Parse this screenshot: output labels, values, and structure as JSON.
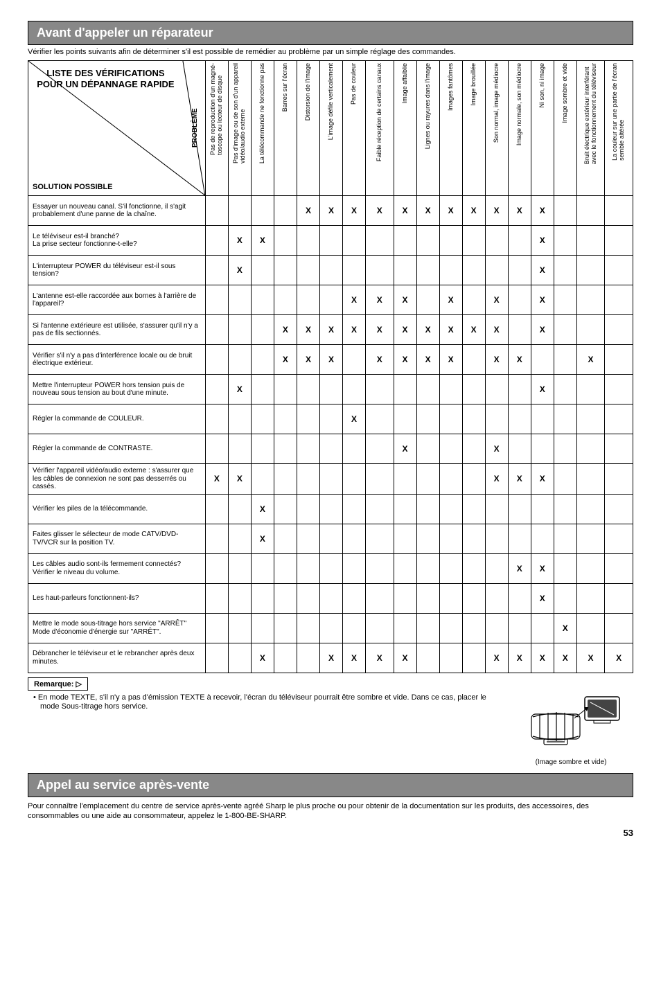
{
  "section1_title": "Avant d'appeler un réparateur",
  "intro": "Vérifier les points suivants afin de déterminer s'il est possible de remédier au problème par un simple réglage des commandes.",
  "corner": {
    "main": "LISTE DES VÉRIFICATIONS POUR UN DÉPANNAGE RAPIDE",
    "side": "PROBLÈME",
    "bottom": "SOLUTION POSSIBLE"
  },
  "columns": [
    "Pas de reproduction d'un magné-\ntoscope ou lecteur de disque",
    "Pas d'image ou de son d'un appareil\nvidéo/audio externe",
    "La télécommande ne fonctionne pas",
    "Barres sur l'écran",
    "Distorsion de l'image",
    "L'image défile verticalement",
    "Pas de couleur",
    "Faible réception de certains canaux",
    "Image affaiblie",
    "Lignes ou rayures dans l'image",
    "Images fantômes",
    "Image brouillée",
    "Son normal, image médiocre",
    "Image normale, son médiocre",
    "Ni son, ni image",
    "Image sombre et vide",
    "Bruit électrique extérieur interférant\navec le fonctionnement du téléviseur",
    "La couleur sur une partie de l'écran\nsemble altérée"
  ],
  "rows": [
    {
      "label": "Essayer un nouveau canal. S'il fonctionne, il s'agit probablement d'une panne de la chaîne.",
      "marks": [
        "",
        "",
        "",
        "",
        "X",
        "X",
        "X",
        "X",
        "X",
        "X",
        "X",
        "X",
        "X",
        "X",
        "X",
        "",
        "",
        ""
      ]
    },
    {
      "label": "Le téléviseur est-il branché?\nLa prise secteur fonctionne-t-elle?",
      "marks": [
        "",
        "X",
        "X",
        "",
        "",
        "",
        "",
        "",
        "",
        "",
        "",
        "",
        "",
        "",
        "X",
        "",
        "",
        ""
      ]
    },
    {
      "label": "L'interrupteur POWER du téléviseur est-il sous tension?",
      "marks": [
        "",
        "X",
        "",
        "",
        "",
        "",
        "",
        "",
        "",
        "",
        "",
        "",
        "",
        "",
        "X",
        "",
        "",
        ""
      ]
    },
    {
      "label": "L'antenne est-elle raccordée aux bornes à l'arrière de l'appareil?",
      "marks": [
        "",
        "",
        "",
        "",
        "",
        "",
        "X",
        "X",
        "X",
        "",
        "X",
        "",
        "X",
        "",
        "X",
        "",
        "",
        ""
      ]
    },
    {
      "label": "Si l'antenne extérieure est utilisée, s'assurer qu'il n'y a pas de fils sectionnés.",
      "marks": [
        "",
        "",
        "",
        "X",
        "X",
        "X",
        "X",
        "X",
        "X",
        "X",
        "X",
        "X",
        "X",
        "",
        "X",
        "",
        "",
        ""
      ]
    },
    {
      "label": "Vérifier s'il n'y a pas d'interférence locale ou de bruit électrique extérieur.",
      "marks": [
        "",
        "",
        "",
        "X",
        "X",
        "X",
        "",
        "X",
        "X",
        "X",
        "X",
        "",
        "X",
        "X",
        "",
        "",
        "X",
        ""
      ]
    },
    {
      "label": "Mettre l'interrupteur POWER hors tension puis de nouveau sous tension au bout d'une minute.",
      "marks": [
        "",
        "X",
        "",
        "",
        "",
        "",
        "",
        "",
        "",
        "",
        "",
        "",
        "",
        "",
        "X",
        "",
        "",
        ""
      ]
    },
    {
      "label": "Régler la commande de COULEUR.",
      "marks": [
        "",
        "",
        "",
        "",
        "",
        "",
        "X",
        "",
        "",
        "",
        "",
        "",
        "",
        "",
        "",
        "",
        "",
        ""
      ]
    },
    {
      "label": "Régler la commande de CONTRASTE.",
      "marks": [
        "",
        "",
        "",
        "",
        "",
        "",
        "",
        "",
        "X",
        "",
        "",
        "",
        "X",
        "",
        "",
        "",
        "",
        ""
      ]
    },
    {
      "label": "Vérifier l'appareil vidéo/audio externe : s'assurer que les câbles de connexion ne sont pas desserrés ou cassés.",
      "marks": [
        "X",
        "X",
        "",
        "",
        "",
        "",
        "",
        "",
        "",
        "",
        "",
        "",
        "X",
        "X",
        "X",
        "",
        "",
        ""
      ]
    },
    {
      "label": "Vérifier les piles de la télécommande.",
      "marks": [
        "",
        "",
        "X",
        "",
        "",
        "",
        "",
        "",
        "",
        "",
        "",
        "",
        "",
        "",
        "",
        "",
        "",
        ""
      ]
    },
    {
      "label": "Faites glisser le sélecteur de mode CATV/DVD-TV/VCR sur la position TV.",
      "marks": [
        "",
        "",
        "X",
        "",
        "",
        "",
        "",
        "",
        "",
        "",
        "",
        "",
        "",
        "",
        "",
        "",
        "",
        ""
      ]
    },
    {
      "label": "Les câbles audio sont-ils fermement connectés? Vérifier le niveau du volume.",
      "marks": [
        "",
        "",
        "",
        "",
        "",
        "",
        "",
        "",
        "",
        "",
        "",
        "",
        "",
        "X",
        "X",
        "",
        "",
        ""
      ]
    },
    {
      "label": "Les haut-parleurs fonctionnent-ils?",
      "marks": [
        "",
        "",
        "",
        "",
        "",
        "",
        "",
        "",
        "",
        "",
        "",
        "",
        "",
        "",
        "X",
        "",
        "",
        ""
      ]
    },
    {
      "label": "Mettre le mode sous-titrage hors service \"ARRÊT\" Mode d'économie d'énergie sur \"ARRÊT\".",
      "marks": [
        "",
        "",
        "",
        "",
        "",
        "",
        "",
        "",
        "",
        "",
        "",
        "",
        "",
        "",
        "",
        "X",
        "",
        ""
      ]
    },
    {
      "label": "Débrancher le téléviseur et le rebrancher après deux minutes.",
      "marks": [
        "",
        "",
        "X",
        "",
        "",
        "X",
        "X",
        "X",
        "X",
        "",
        "",
        "",
        "X",
        "X",
        "X",
        "X",
        "X",
        "X"
      ]
    }
  ],
  "remarque_label": "Remarque:",
  "note_bullet": "• En mode TEXTE, s'il n'y a pas d'émission TEXTE à recevoir, l'écran du téléviseur pourrait être sombre et vide. Dans ce cas, placer le mode Sous-titrage hors service.",
  "tv_caption": "(Image sombre et vide)",
  "section2_title": "Appel au service après-vente",
  "footer": "Pour connaître l'emplacement du centre de service après-vente agréé Sharp le plus proche ou pour obtenir de la documentation sur les produits, des accessoires, des consommables ou une aide au consommateur, appelez le 1-800-BE-SHARP.",
  "page": "53"
}
